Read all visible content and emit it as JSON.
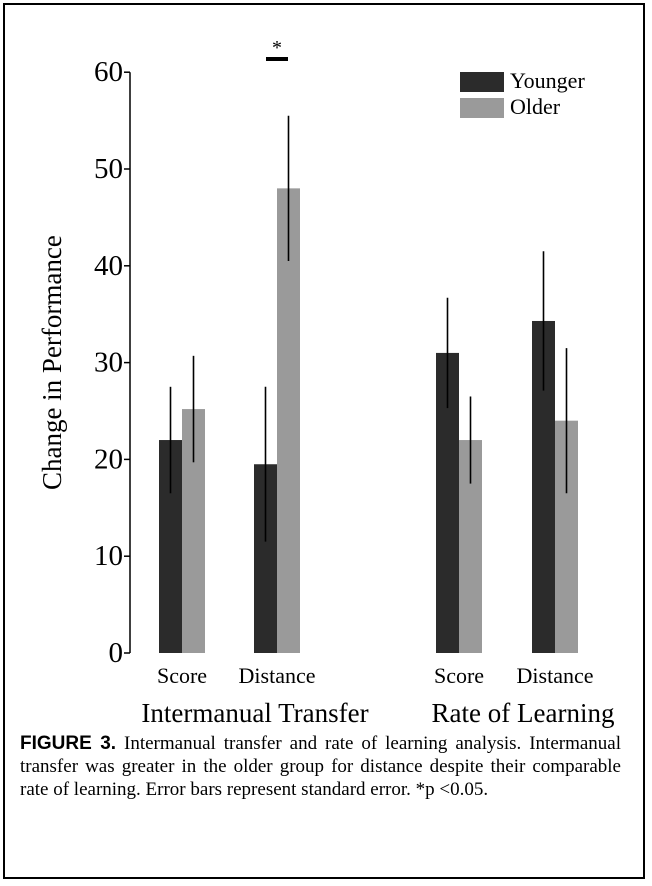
{
  "chart_data": {
    "type": "bar",
    "ylabel": "Change in Performance",
    "ylim": [
      0,
      60
    ],
    "yticks": [
      0,
      10,
      20,
      30,
      40,
      50,
      60
    ],
    "groups": [
      {
        "label": "Intermanual Transfer",
        "categories": [
          "Score",
          "Distance"
        ]
      },
      {
        "label": "Rate of Learning",
        "categories": [
          "Score",
          "Distance"
        ]
      }
    ],
    "series": [
      {
        "name": "Younger",
        "color": "#2b2b2b",
        "values": [
          22.0,
          19.5,
          31.0,
          34.3
        ],
        "errors": [
          5.5,
          8.0,
          5.7,
          7.2
        ]
      },
      {
        "name": "Older",
        "color": "#9a9a9a",
        "values": [
          25.2,
          48.0,
          22.0,
          24.0
        ],
        "errors": [
          5.5,
          7.5,
          4.5,
          7.5
        ]
      }
    ],
    "legend_position": "top-right",
    "annotations": [
      {
        "text": "*",
        "group": 0,
        "category": 1
      }
    ]
  },
  "caption": {
    "label": "FIGURE 3.",
    "text": " Intermanual transfer and rate of learning analysis. Intermanual transfer was greater in the older group for distance despite their comparable rate of learning. Error bars represent standard error. *p <0.05."
  }
}
